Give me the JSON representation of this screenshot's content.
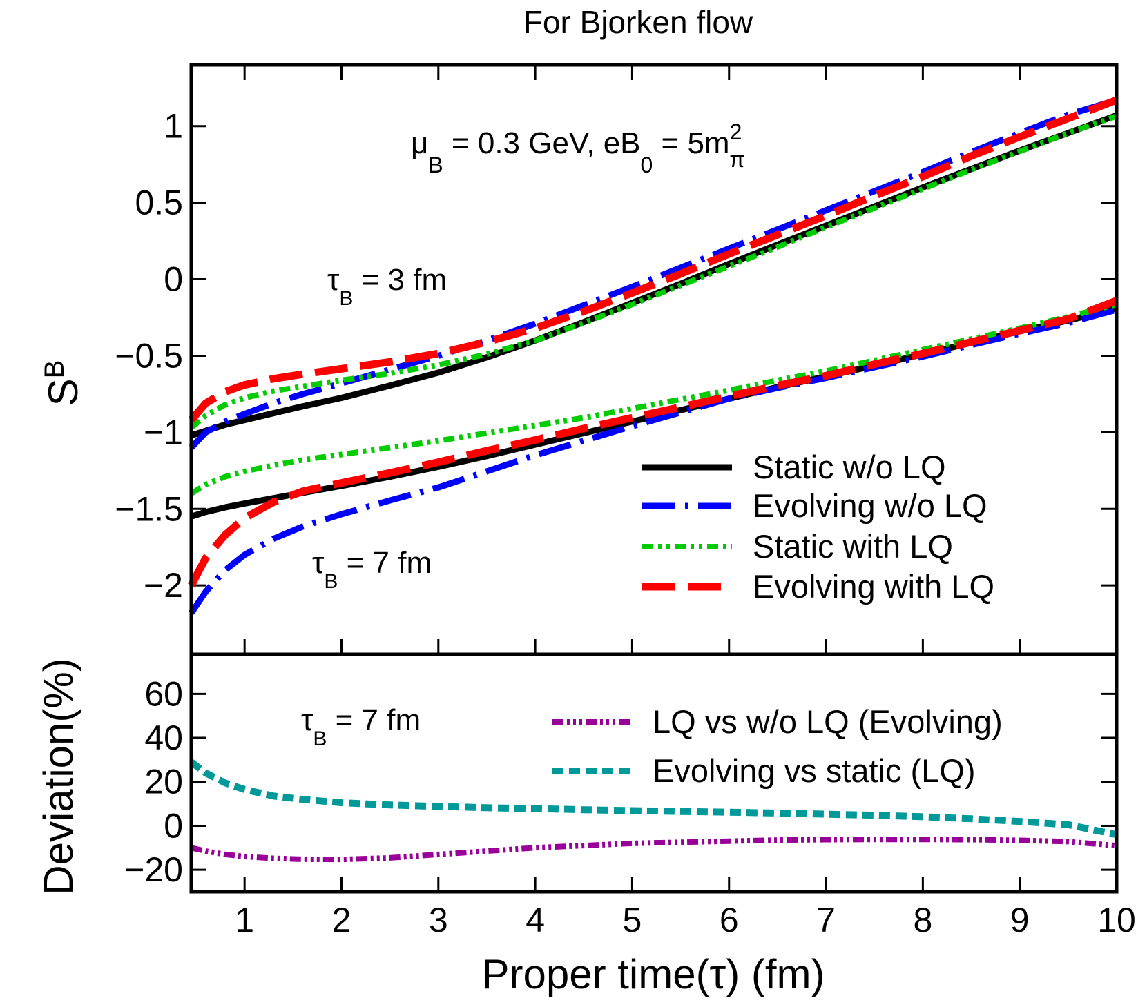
{
  "chart_data": {
    "type": "line",
    "title": "For Bjorken flow",
    "xlabel": "Proper time(τ) (fm)",
    "xlim": [
      0.45,
      10.0
    ],
    "xticks": [
      1,
      2,
      3,
      4,
      5,
      6,
      7,
      8,
      9,
      10
    ],
    "xtick_labels": [
      "1",
      "2",
      "3",
      "4",
      "5",
      "6",
      "7",
      "8",
      "9",
      "10"
    ],
    "top_panel": {
      "ylabel": {
        "main": "S",
        "sub": "B"
      },
      "ylim": [
        -2.45,
        1.4
      ],
      "yticks": [
        1,
        0.5,
        0,
        -0.5,
        -1,
        -1.5,
        -2
      ],
      "ytick_labels": [
        "1",
        "0.5",
        "0",
        "−0.5",
        "−1",
        "−1.5",
        "−2"
      ],
      "params": {
        "mu_sym": "μ",
        "mu_sub": "B",
        "mu_rest": " = 0.3 GeV, eB",
        "eb_sub": "0",
        "eb_rest": " = 5m",
        "m_sup": "2",
        "m_sub": "π"
      },
      "annotations": [
        {
          "id": "tau3",
          "sym": "τ",
          "sub": "B",
          "rest": " = 3 fm"
        },
        {
          "id": "tau7",
          "sym": "τ",
          "sub": "B",
          "rest": " = 7 fm"
        }
      ],
      "x": [
        0.45,
        0.6,
        0.8,
        1.0,
        1.3,
        1.6,
        2.0,
        2.5,
        3.0,
        3.5,
        4.0,
        4.5,
        5.0,
        5.5,
        6.0,
        6.5,
        7.0,
        7.5,
        8.0,
        8.5,
        9.0,
        9.5,
        10.0
      ],
      "series": [
        {
          "name": "Static w/o LQ",
          "group": "tau_B = 3 fm",
          "style": "solid",
          "color": "#000000",
          "values": [
            -1.02,
            -0.99,
            -0.95,
            -0.92,
            -0.875,
            -0.83,
            -0.775,
            -0.695,
            -0.61,
            -0.51,
            -0.4,
            -0.28,
            -0.155,
            -0.03,
            0.1,
            0.225,
            0.35,
            0.475,
            0.6,
            0.72,
            0.84,
            0.955,
            1.07
          ]
        },
        {
          "name": "Evolving w/o LQ",
          "group": "tau_B = 3 fm",
          "style": "dash-dot",
          "color": "#0000ff",
          "values": [
            -1.1,
            -1.0,
            -0.93,
            -0.88,
            -0.81,
            -0.75,
            -0.68,
            -0.59,
            -0.5,
            -0.4,
            -0.29,
            -0.17,
            -0.05,
            0.075,
            0.2,
            0.325,
            0.45,
            0.575,
            0.7,
            0.83,
            0.955,
            1.075,
            1.17
          ]
        },
        {
          "name": "Static with LQ",
          "group": "tau_B = 3 fm",
          "style": "dash-dot-dot",
          "color": "#00cc00",
          "values": [
            -0.97,
            -0.89,
            -0.82,
            -0.775,
            -0.73,
            -0.7,
            -0.66,
            -0.615,
            -0.56,
            -0.49,
            -0.4,
            -0.285,
            -0.165,
            -0.04,
            0.085,
            0.21,
            0.34,
            0.465,
            0.59,
            0.715,
            0.835,
            0.955,
            1.065
          ]
        },
        {
          "name": "Evolving with LQ",
          "group": "tau_B = 3 fm",
          "style": "long-dash",
          "color": "#ff0000",
          "values": [
            -0.92,
            -0.81,
            -0.735,
            -0.69,
            -0.65,
            -0.62,
            -0.585,
            -0.54,
            -0.485,
            -0.41,
            -0.32,
            -0.21,
            -0.09,
            0.035,
            0.165,
            0.29,
            0.415,
            0.545,
            0.67,
            0.805,
            0.93,
            1.05,
            1.17
          ]
        },
        {
          "name": "Static w/o LQ",
          "group": "tau_B = 7 fm",
          "style": "solid",
          "color": "#000000",
          "values": [
            -1.55,
            -1.52,
            -1.49,
            -1.465,
            -1.43,
            -1.395,
            -1.35,
            -1.29,
            -1.225,
            -1.155,
            -1.08,
            -1.005,
            -0.93,
            -0.855,
            -0.78,
            -0.705,
            -0.635,
            -0.565,
            -0.49,
            -0.415,
            -0.34,
            -0.27,
            -0.19
          ]
        },
        {
          "name": "Evolving w/o LQ",
          "group": "tau_B = 7 fm",
          "style": "dash-dot",
          "color": "#0000ff",
          "values": [
            -2.18,
            -2.04,
            -1.9,
            -1.8,
            -1.695,
            -1.615,
            -1.535,
            -1.445,
            -1.36,
            -1.255,
            -1.15,
            -1.055,
            -0.96,
            -0.87,
            -0.78,
            -0.71,
            -0.645,
            -0.575,
            -0.505,
            -0.43,
            -0.355,
            -0.285,
            -0.2
          ]
        },
        {
          "name": "Static with LQ",
          "group": "tau_B = 7 fm",
          "style": "dash-dot-dot",
          "color": "#00cc00",
          "values": [
            -1.4,
            -1.34,
            -1.29,
            -1.255,
            -1.215,
            -1.18,
            -1.145,
            -1.1,
            -1.055,
            -1.005,
            -0.955,
            -0.905,
            -0.845,
            -0.785,
            -0.725,
            -0.66,
            -0.6,
            -0.53,
            -0.46,
            -0.39,
            -0.32,
            -0.245,
            -0.165
          ]
        },
        {
          "name": "Evolving with LQ",
          "group": "tau_B = 7 fm",
          "style": "long-dash",
          "color": "#ff0000",
          "values": [
            -2.0,
            -1.82,
            -1.67,
            -1.56,
            -1.455,
            -1.385,
            -1.33,
            -1.265,
            -1.195,
            -1.12,
            -1.05,
            -0.975,
            -0.905,
            -0.835,
            -0.765,
            -0.695,
            -0.63,
            -0.555,
            -0.485,
            -0.41,
            -0.335,
            -0.26,
            -0.14
          ]
        }
      ],
      "legend": {
        "position": "lower-right",
        "entries": [
          {
            "label": "Static w/o LQ",
            "color": "#000000",
            "style": "solid"
          },
          {
            "label": "Evolving w/o LQ",
            "color": "#0000ff",
            "style": "dash-dot"
          },
          {
            "label": "Static with LQ",
            "color": "#00cc00",
            "style": "dash-dot-dot"
          },
          {
            "label": "Evolving with LQ",
            "color": "#ff0000",
            "style": "long-dash"
          }
        ]
      }
    },
    "bottom_panel": {
      "ylabel": "Deviation(%)",
      "ylim": [
        -30,
        78
      ],
      "yticks": [
        60,
        40,
        20,
        0,
        -20
      ],
      "ytick_labels": [
        "60",
        "40",
        "20",
        "0",
        "−20"
      ],
      "annotation": {
        "sym": "τ",
        "sub": "B",
        "rest": " = 7 fm"
      },
      "x": [
        0.45,
        0.6,
        0.8,
        1.0,
        1.3,
        1.6,
        2.0,
        2.5,
        3.0,
        3.5,
        4.0,
        4.5,
        5.0,
        5.5,
        6.0,
        6.5,
        7.0,
        7.5,
        8.0,
        8.5,
        9.0,
        9.5,
        10.0
      ],
      "series": [
        {
          "name": "LQ vs w/o LQ (Evolving)",
          "style": "dot-dash",
          "color": "#990099",
          "values": [
            -10,
            -11.5,
            -13,
            -14,
            -14.8,
            -15.2,
            -15.3,
            -14.6,
            -13,
            -11.5,
            -10,
            -9,
            -8,
            -7.5,
            -7,
            -6.5,
            -6.3,
            -6.2,
            -6.2,
            -6.3,
            -6.6,
            -7.2,
            -9
          ]
        },
        {
          "name": "Evolving vs static (LQ)",
          "style": "dashed",
          "color": "#009999",
          "values": [
            29,
            24,
            19.5,
            16.5,
            13.5,
            12,
            10.5,
            9.5,
            8.8,
            8.2,
            7.8,
            7.3,
            6.9,
            6.5,
            6.2,
            5.8,
            5.3,
            4.8,
            4.1,
            3.2,
            2.0,
            0.5,
            -4
          ]
        }
      ],
      "legend": {
        "position": "top-right",
        "entries": [
          {
            "label": "LQ vs w/o LQ (Evolving)",
            "color": "#990099",
            "style": "dot-dash"
          },
          {
            "label": "Evolving vs static (LQ)",
            "color": "#009999",
            "style": "dashed"
          }
        ]
      }
    }
  }
}
